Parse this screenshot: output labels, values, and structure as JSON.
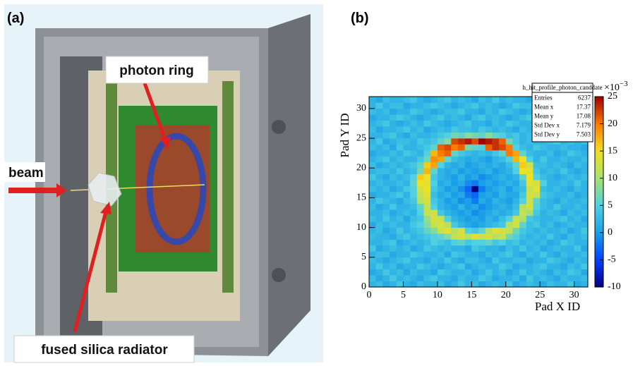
{
  "panel_a": {
    "label": "(a)",
    "annotations": {
      "photon_ring": "photon ring",
      "beam": "beam",
      "radiator": "fused silica radiator"
    }
  },
  "chart_data": {
    "type": "heatmap",
    "panel_label": "(b)",
    "xlabel": "Pad X ID",
    "ylabel": "Pad Y ID",
    "xlim": [
      0,
      32
    ],
    "ylim": [
      0,
      32
    ],
    "xticks": [
      0,
      5,
      10,
      15,
      20,
      25,
      30
    ],
    "yticks": [
      0,
      5,
      10,
      15,
      20,
      25,
      30
    ],
    "zlim": [
      -10,
      25
    ],
    "zticks": [
      -10,
      -5,
      0,
      5,
      10,
      15,
      20,
      25
    ],
    "colorbar_scale": "×10",
    "colorbar_scale_exponent": "−3",
    "colorscale": [
      "#000080",
      "#0040ff",
      "#1aa0e8",
      "#50d0e0",
      "#a8e070",
      "#f0e020",
      "#ff7a00",
      "#a00000"
    ],
    "stats": {
      "title": "h_hit_profile_photon_canddate",
      "entries": [
        {
          "label": "Entries",
          "value": 6237
        },
        {
          "label": "Mean x",
          "value": 17.37
        },
        {
          "label": "Mean y",
          "value": 17.08
        },
        {
          "label": "Std Dev x",
          "value": 7.179
        },
        {
          "label": "Std Dev y",
          "value": 7.503
        }
      ]
    },
    "values": [
      [
        2,
        3,
        1,
        2,
        4,
        2,
        1,
        3,
        2,
        2,
        3,
        1,
        2,
        4,
        2,
        3,
        1,
        2,
        3,
        2,
        4,
        1,
        2,
        3,
        2,
        1,
        3,
        2,
        2,
        4,
        1,
        2
      ],
      [
        3,
        1,
        2,
        4,
        2,
        3,
        2,
        1,
        3,
        4,
        2,
        2,
        1,
        3,
        2,
        2,
        4,
        3,
        1,
        2,
        2,
        3,
        1,
        4,
        2,
        3,
        2,
        1,
        3,
        2,
        2,
        3
      ],
      [
        1,
        2,
        4,
        2,
        3,
        1,
        3,
        2,
        2,
        1,
        4,
        3,
        2,
        2,
        3,
        1,
        2,
        4,
        2,
        3,
        1,
        2,
        4,
        2,
        3,
        2,
        1,
        3,
        2,
        4,
        3,
        1
      ],
      [
        2,
        4,
        2,
        3,
        1,
        2,
        2,
        4,
        3,
        2,
        1,
        2,
        3,
        4,
        1,
        2,
        3,
        2,
        2,
        4,
        3,
        1,
        2,
        2,
        3,
        4,
        2,
        2,
        1,
        3,
        2,
        4
      ],
      [
        3,
        2,
        1,
        2,
        3,
        4,
        2,
        2,
        1,
        3,
        2,
        4,
        2,
        1,
        3,
        3,
        2,
        1,
        4,
        2,
        2,
        3,
        3,
        1,
        2,
        2,
        4,
        3,
        2,
        1,
        3,
        2
      ],
      [
        2,
        3,
        3,
        1,
        2,
        2,
        4,
        3,
        2,
        2,
        3,
        1,
        4,
        3,
        2,
        2,
        1,
        3,
        2,
        3,
        4,
        2,
        1,
        3,
        2,
        4,
        2,
        1,
        3,
        2,
        2,
        3
      ],
      [
        4,
        1,
        2,
        3,
        2,
        3,
        1,
        2,
        4,
        3,
        2,
        3,
        2,
        2,
        1,
        4,
        3,
        2,
        2,
        1,
        3,
        2,
        4,
        2,
        3,
        1,
        2,
        3,
        2,
        2,
        4,
        1
      ],
      [
        2,
        2,
        3,
        4,
        1,
        2,
        3,
        2,
        3,
        5,
        4,
        3,
        5,
        6,
        4,
        5,
        5,
        6,
        4,
        5,
        3,
        4,
        2,
        3,
        2,
        3,
        1,
        2,
        4,
        3,
        2,
        2
      ],
      [
        3,
        2,
        2,
        1,
        3,
        4,
        2,
        3,
        4,
        5,
        6,
        8,
        12,
        13,
        11,
        14,
        12,
        13,
        11,
        12,
        7,
        5,
        3,
        2,
        3,
        2,
        4,
        2,
        1,
        3,
        2,
        3
      ],
      [
        2,
        3,
        1,
        2,
        4,
        2,
        3,
        4,
        6,
        8,
        12,
        14,
        11,
        13,
        5,
        4,
        6,
        11,
        14,
        13,
        12,
        7,
        4,
        3,
        2,
        3,
        2,
        2,
        3,
        1,
        2,
        4
      ],
      [
        1,
        3,
        2,
        3,
        2,
        2,
        4,
        5,
        8,
        12,
        13,
        11,
        4,
        2,
        1,
        0,
        1,
        2,
        3,
        4,
        11,
        13,
        6,
        3,
        4,
        2,
        3,
        1,
        2,
        3,
        2,
        2
      ],
      [
        3,
        2,
        4,
        2,
        3,
        1,
        3,
        4,
        9,
        13,
        12,
        5,
        2,
        1,
        0,
        1,
        0,
        2,
        1,
        3,
        5,
        12,
        11,
        4,
        3,
        2,
        2,
        3,
        4,
        2,
        3,
        1
      ],
      [
        2,
        2,
        3,
        1,
        2,
        3,
        2,
        5,
        12,
        13,
        4,
        2,
        1,
        0,
        1,
        -1,
        0,
        1,
        2,
        1,
        2,
        4,
        12,
        10,
        4,
        2,
        3,
        2,
        1,
        3,
        2,
        3
      ],
      [
        3,
        1,
        2,
        4,
        2,
        2,
        3,
        6,
        12,
        5,
        2,
        1,
        0,
        2,
        0,
        1,
        -1,
        0,
        1,
        2,
        1,
        3,
        11,
        13,
        5,
        3,
        2,
        4,
        2,
        2,
        3,
        2
      ],
      [
        2,
        4,
        3,
        2,
        1,
        3,
        4,
        11,
        13,
        4,
        2,
        0,
        1,
        -1,
        0,
        -2,
        1,
        0,
        2,
        1,
        0,
        2,
        5,
        12,
        6,
        3,
        2,
        1,
        3,
        2,
        2,
        3
      ],
      [
        1,
        2,
        2,
        3,
        4,
        2,
        5,
        12,
        14,
        3,
        1,
        2,
        0,
        1,
        -2,
        -3,
        0,
        1,
        0,
        2,
        1,
        1,
        4,
        13,
        12,
        4,
        3,
        2,
        2,
        3,
        1,
        2
      ],
      [
        3,
        2,
        3,
        1,
        2,
        4,
        5,
        13,
        15,
        4,
        2,
        0,
        1,
        -1,
        -3,
        -10,
        -2,
        0,
        1,
        2,
        0,
        2,
        3,
        12,
        14,
        3,
        2,
        3,
        2,
        1,
        3,
        2
      ],
      [
        2,
        3,
        2,
        2,
        3,
        2,
        6,
        15,
        14,
        5,
        1,
        2,
        0,
        1,
        -1,
        -2,
        0,
        1,
        0,
        1,
        2,
        1,
        4,
        14,
        13,
        5,
        2,
        2,
        3,
        2,
        4,
        2
      ],
      [
        4,
        2,
        1,
        3,
        2,
        3,
        5,
        16,
        15,
        4,
        2,
        1,
        0,
        2,
        0,
        1,
        -1,
        0,
        1,
        2,
        1,
        2,
        6,
        15,
        5,
        3,
        2,
        1,
        2,
        3,
        2,
        3
      ],
      [
        2,
        3,
        3,
        2,
        4,
        2,
        3,
        7,
        17,
        6,
        2,
        1,
        2,
        0,
        1,
        0,
        1,
        2,
        0,
        1,
        2,
        5,
        15,
        14,
        4,
        2,
        3,
        2,
        4,
        2,
        1,
        2
      ],
      [
        3,
        1,
        2,
        3,
        2,
        3,
        4,
        6,
        16,
        18,
        5,
        2,
        1,
        2,
        0,
        1,
        2,
        1,
        2,
        1,
        3,
        6,
        16,
        13,
        3,
        3,
        2,
        3,
        2,
        1,
        3,
        2
      ],
      [
        2,
        3,
        4,
        2,
        3,
        2,
        2,
        4,
        7,
        19,
        18,
        6,
        3,
        2,
        1,
        2,
        1,
        0,
        2,
        3,
        5,
        17,
        15,
        5,
        2,
        4,
        2,
        2,
        3,
        2,
        2,
        3
      ],
      [
        1,
        2,
        2,
        3,
        2,
        4,
        3,
        2,
        5,
        17,
        20,
        21,
        6,
        4,
        3,
        2,
        3,
        2,
        4,
        6,
        20,
        18,
        6,
        3,
        2,
        2,
        3,
        1,
        2,
        4,
        3,
        2
      ],
      [
        3,
        2,
        3,
        1,
        4,
        2,
        2,
        3,
        4,
        6,
        21,
        22,
        20,
        21,
        7,
        6,
        5,
        21,
        23,
        22,
        20,
        5,
        3,
        2,
        4,
        3,
        2,
        2,
        3,
        2,
        2,
        1
      ],
      [
        2,
        4,
        1,
        2,
        3,
        3,
        2,
        4,
        3,
        4,
        6,
        8,
        22,
        23,
        24,
        22,
        25,
        24,
        23,
        21,
        7,
        4,
        2,
        3,
        2,
        2,
        3,
        4,
        2,
        3,
        2,
        3
      ],
      [
        2,
        2,
        3,
        4,
        2,
        1,
        3,
        2,
        2,
        3,
        4,
        5,
        7,
        6,
        8,
        7,
        6,
        8,
        6,
        5,
        3,
        4,
        2,
        3,
        2,
        4,
        1,
        2,
        3,
        2,
        4,
        2
      ],
      [
        3,
        1,
        2,
        2,
        3,
        4,
        2,
        3,
        1,
        2,
        3,
        2,
        4,
        3,
        3,
        2,
        4,
        3,
        2,
        3,
        2,
        1,
        3,
        2,
        3,
        2,
        2,
        3,
        1,
        3,
        2,
        4
      ],
      [
        2,
        3,
        4,
        2,
        1,
        2,
        3,
        2,
        4,
        3,
        2,
        1,
        2,
        3,
        4,
        2,
        2,
        1,
        3,
        2,
        4,
        3,
        2,
        2,
        1,
        3,
        2,
        3,
        4,
        2,
        3,
        1
      ],
      [
        1,
        2,
        2,
        3,
        4,
        3,
        2,
        1,
        2,
        3,
        4,
        2,
        3,
        2,
        1,
        3,
        4,
        2,
        3,
        2,
        1,
        2,
        3,
        4,
        3,
        2,
        4,
        2,
        2,
        3,
        1,
        2
      ],
      [
        3,
        2,
        3,
        1,
        2,
        2,
        4,
        3,
        2,
        1,
        2,
        3,
        3,
        4,
        2,
        2,
        1,
        3,
        2,
        4,
        3,
        2,
        1,
        2,
        3,
        3,
        2,
        1,
        3,
        2,
        4,
        3
      ],
      [
        2,
        4,
        2,
        3,
        3,
        1,
        2,
        2,
        3,
        4,
        3,
        2,
        1,
        2,
        3,
        4,
        2,
        3,
        2,
        1,
        2,
        4,
        3,
        3,
        2,
        1,
        3,
        2,
        2,
        4,
        2,
        1
      ],
      [
        2,
        1,
        3,
        2,
        2,
        3,
        4,
        2,
        1,
        2,
        3,
        4,
        2,
        3,
        2,
        1,
        3,
        2,
        4,
        2,
        3,
        2,
        2,
        1,
        4,
        3,
        2,
        3,
        1,
        2,
        3,
        2
      ]
    ]
  }
}
